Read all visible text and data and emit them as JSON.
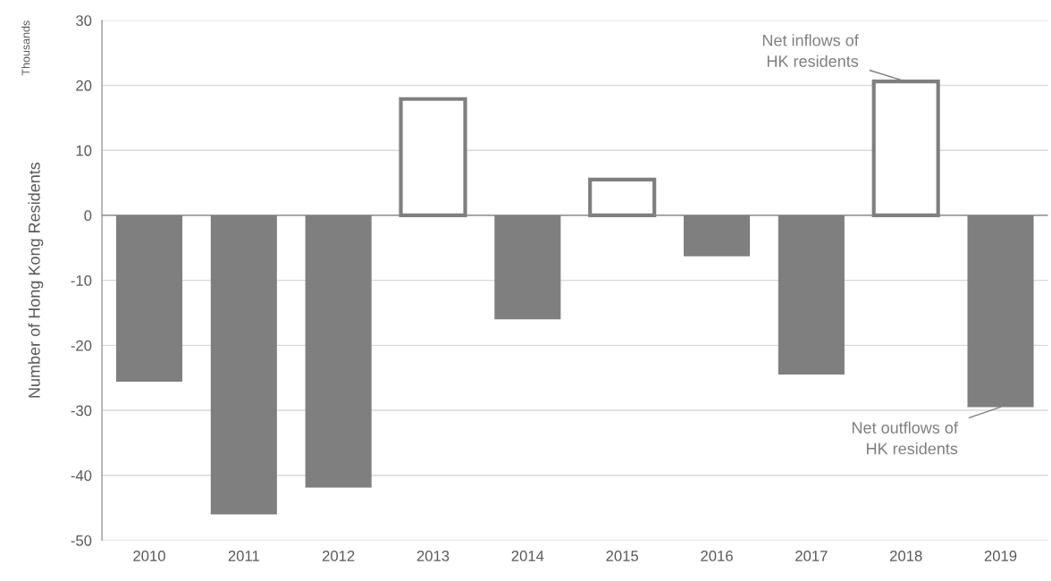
{
  "chart_data": {
    "type": "bar",
    "ylabel": "Number of Hong Kong Residents",
    "categories": [
      "2010",
      "2011",
      "2012",
      "2013",
      "2014",
      "2015",
      "2016",
      "2017",
      "2018",
      "2019"
    ],
    "series": [
      {
        "color": "#7f7f7f",
        "values": [
          -25.6,
          -46.0,
          -41.9,
          17.9,
          -16.0,
          5.5,
          -6.3,
          -24.5,
          20.6,
          -29.5
        ]
      }
    ],
    "ylim": [
      -50,
      30
    ],
    "yticks": [
      -50,
      -40,
      -30,
      -20,
      -10,
      0,
      10,
      20,
      30
    ],
    "grid": "y",
    "annotations": [
      "Thousands",
      {
        "text": "Net inflows of\nHK residents",
        "x": "2018",
        "y": 20.6
      },
      {
        "text": "Net outflows of\nHK residents",
        "x": "2019",
        "y": -29.5
      }
    ]
  }
}
